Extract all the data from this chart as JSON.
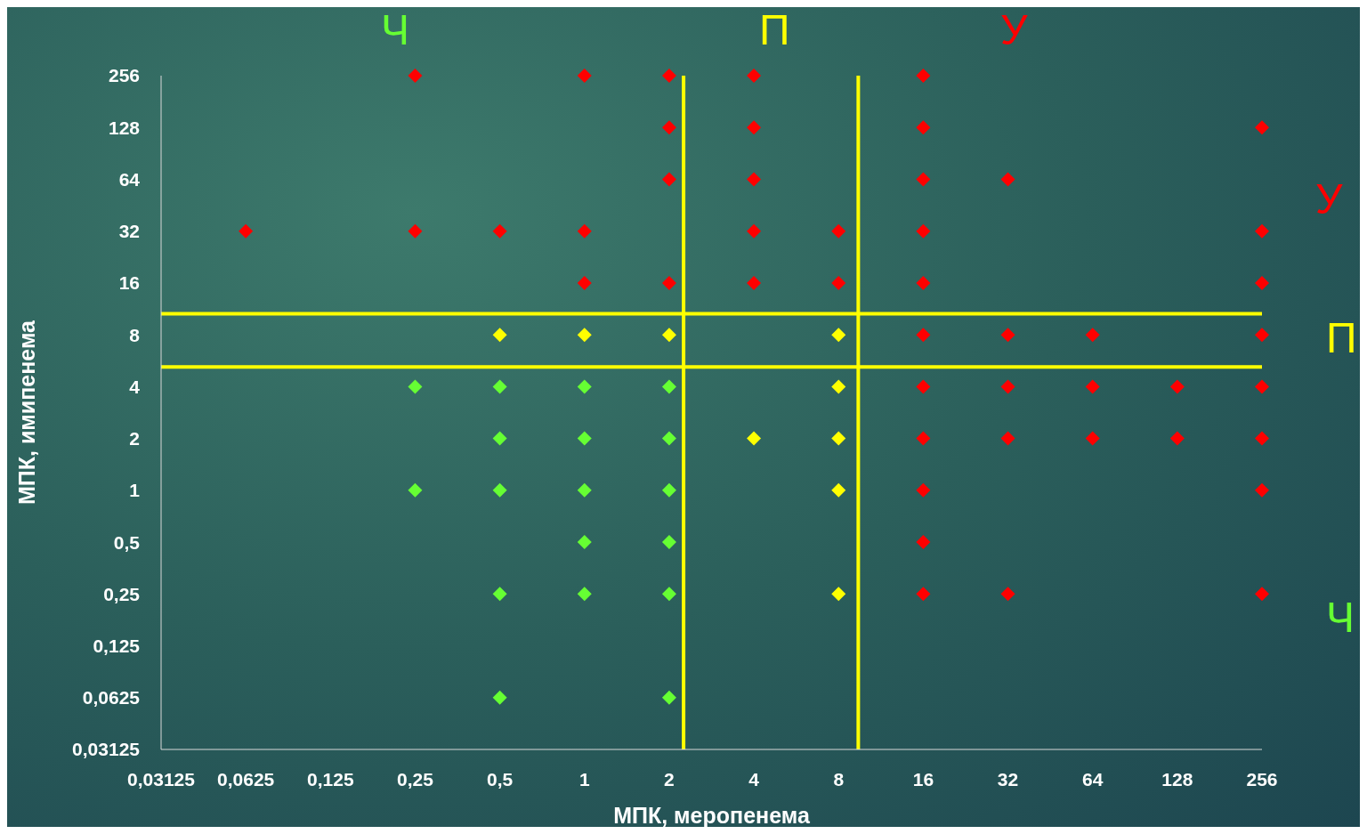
{
  "chart_data": {
    "type": "scatter",
    "xlabel": "МПК, меропенема",
    "ylabel": "МПК, имипенема",
    "log": "xy",
    "marker": "diamond",
    "xlim": [
      0.03125,
      256
    ],
    "ylim": [
      0.03125,
      256
    ],
    "xticks": [
      {
        "value": 0.03125,
        "label": "0,03125"
      },
      {
        "value": 0.0625,
        "label": "0,0625"
      },
      {
        "value": 0.125,
        "label": "0,125"
      },
      {
        "value": 0.25,
        "label": "0,25"
      },
      {
        "value": 0.5,
        "label": "0,5"
      },
      1,
      2,
      4,
      8,
      16,
      32,
      64,
      128,
      256
    ],
    "yticks": [
      {
        "value": 0.03125,
        "label": "0,03125"
      },
      {
        "value": 0.0625,
        "label": "0,0625"
      },
      {
        "value": 0.125,
        "label": "0,125"
      },
      {
        "value": 0.25,
        "label": "0,25"
      },
      {
        "value": 0.5,
        "label": "0,5"
      },
      1,
      2,
      4,
      8,
      16,
      32,
      64,
      128,
      256
    ],
    "series": [
      {
        "color": "#ff0000",
        "x": [
          0.25,
          1,
          2,
          4,
          16,
          2,
          4,
          16,
          256,
          2,
          4,
          16,
          32,
          0.0625,
          0.25,
          0.5,
          1,
          4,
          8,
          16,
          256,
          1,
          2,
          4,
          8,
          16,
          256,
          16,
          32,
          64,
          256,
          16,
          32,
          64,
          128,
          256,
          16,
          32,
          64,
          128,
          256,
          16,
          256,
          16,
          16,
          32,
          256
        ],
        "values": [
          256,
          256,
          256,
          256,
          256,
          128,
          128,
          128,
          128,
          64,
          64,
          64,
          64,
          32,
          32,
          32,
          32,
          32,
          32,
          32,
          32,
          16,
          16,
          16,
          16,
          16,
          16,
          8,
          8,
          8,
          8,
          4,
          4,
          4,
          4,
          4,
          2,
          2,
          2,
          2,
          2,
          1,
          1,
          0.5,
          0.25,
          0.25,
          0.25
        ]
      },
      {
        "color": "#ffff00",
        "x": [
          0.5,
          1,
          2,
          8,
          8,
          4,
          8,
          8,
          8
        ],
        "values": [
          8,
          8,
          8,
          8,
          4,
          2,
          2,
          1,
          0.25
        ]
      },
      {
        "color": "#66ff33",
        "x": [
          0.25,
          0.5,
          1,
          2,
          0.5,
          1,
          2,
          0.25,
          0.5,
          1,
          2,
          1,
          2,
          0.5,
          1,
          2,
          0.5,
          2
        ],
        "values": [
          4,
          4,
          4,
          4,
          2,
          2,
          2,
          1,
          1,
          1,
          1,
          0.5,
          0.5,
          0.25,
          0.25,
          0.25,
          0.0625,
          0.0625
        ]
      }
    ],
    "ref_lines": [
      {
        "axis": "x",
        "value": 2.25,
        "color": "#ffff00"
      },
      {
        "axis": "x",
        "value": 9.4,
        "color": "#ffff00"
      },
      {
        "axis": "y",
        "value": 10.6,
        "color": "#ffff00"
      },
      {
        "axis": "y",
        "value": 5.2,
        "color": "#ffff00"
      }
    ],
    "annotations": [
      "Ч",
      "П",
      "У",
      "У",
      "П",
      "Ч"
    ]
  }
}
